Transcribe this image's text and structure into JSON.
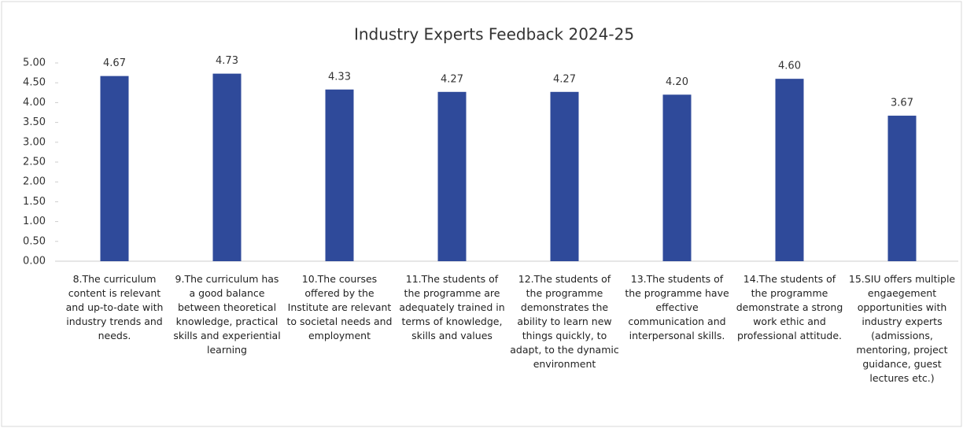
{
  "chart_data": {
    "type": "bar",
    "title": "Industry Experts Feedback 2024-25",
    "categories": [
      "8.The curriculum content is relevant and up-to-date with industry trends and needs.",
      "9.The curriculum has a good balance between theoretical knowledge, practical skills and experiential learning",
      "10.The courses offered by the Institute are relevant to societal needs and employment",
      "11.The students of the programme are adequately trained in terms of knowledge, skills and values",
      "12.The students of the programme demonstrates the ability to learn new things quickly, to adapt, to the dynamic environment",
      "13.The students of the programme have effective communication and interpersonal skills.",
      "14.The students of the programme demonstrate a strong work ethic and professional attitude.",
      "15.SIU offers multiple engaegement opportunities with industry experts (admissions, mentoring, project guidance, guest lectures etc.)"
    ],
    "values": [
      4.67,
      4.73,
      4.33,
      4.27,
      4.27,
      4.2,
      4.6,
      3.67
    ],
    "value_labels": [
      "4.67",
      "4.73",
      "4.33",
      "4.27",
      "4.27",
      "4.20",
      "4.60",
      "3.67"
    ],
    "color": "#2f4a9a",
    "ylim": [
      0,
      5
    ],
    "yticks": [
      {
        "value": 0,
        "label": "0.00"
      },
      {
        "value": 0.5,
        "label": "0.50"
      },
      {
        "value": 1,
        "label": "1.00"
      },
      {
        "value": 1.5,
        "label": "1.50"
      },
      {
        "value": 2,
        "label": "2.00"
      },
      {
        "value": 2.5,
        "label": "2.50"
      },
      {
        "value": 3,
        "label": "3.00"
      },
      {
        "value": 3.5,
        "label": "3.50"
      },
      {
        "value": 4,
        "label": "4.00"
      },
      {
        "value": 4.5,
        "label": "4.50"
      },
      {
        "value": 5,
        "label": "5.00"
      }
    ]
  }
}
